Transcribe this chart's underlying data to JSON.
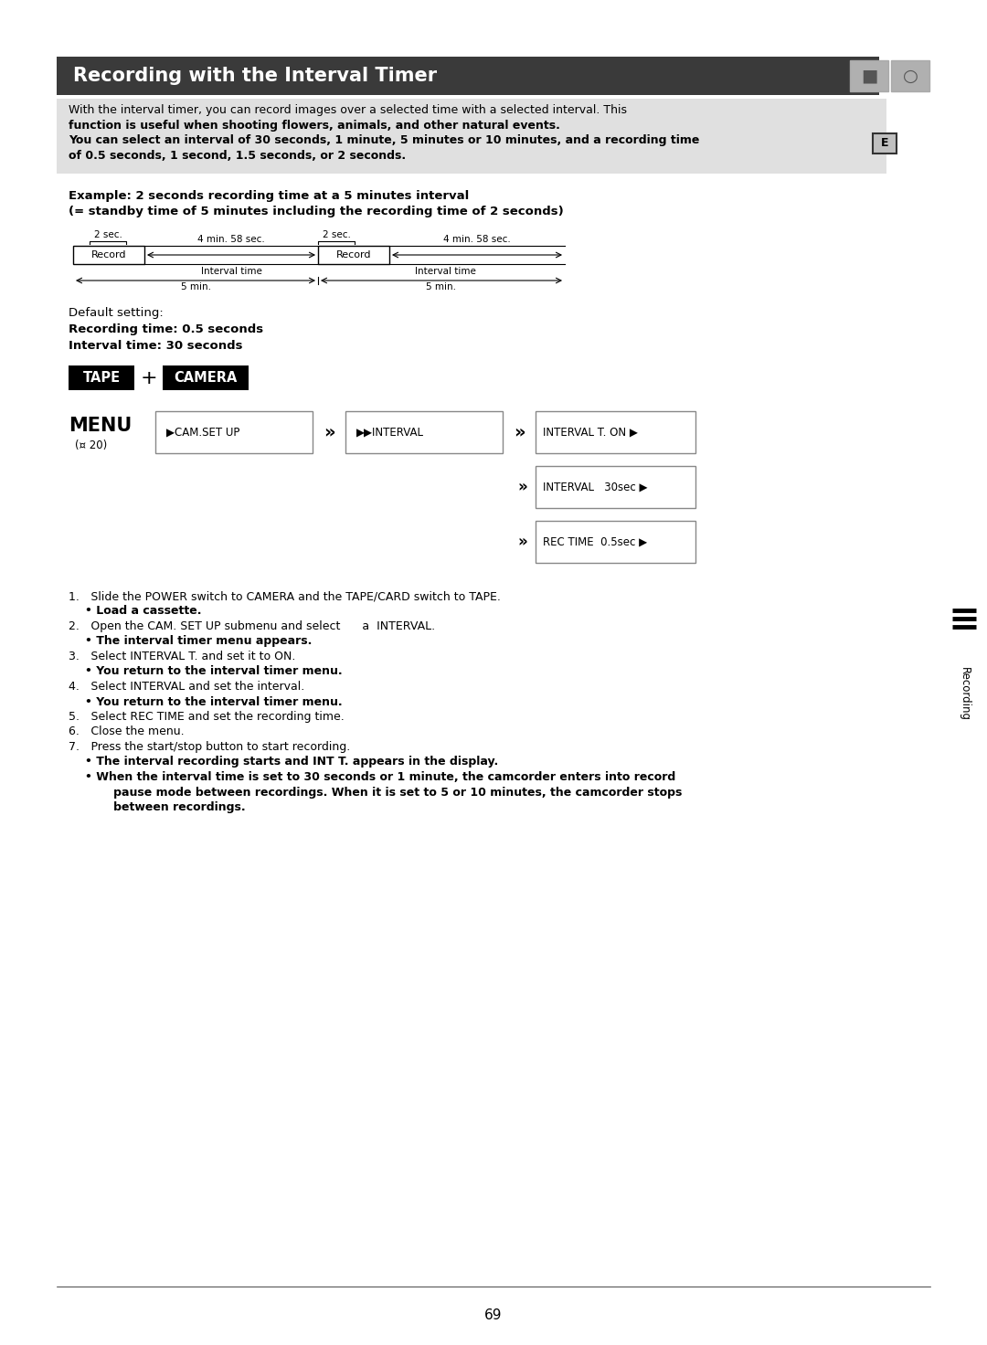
{
  "title": "Recording with the Interval Timer",
  "title_bg": "#3a3a3a",
  "title_color": "#ffffff",
  "body_bg": "#ffffff",
  "page_number": "69",
  "e_box_text": "E",
  "intro_lines": [
    {
      "text": "With the interval timer, you can record images over a selected time with a selected interval. This",
      "bold": false
    },
    {
      "text": "function is useful when shooting flowers, animals, and other natural events.",
      "bold": true
    },
    {
      "text": "You can select an interval of 30 seconds, 1 minute, 5 minutes or 10 minutes, and a recording time",
      "bold": true
    },
    {
      "text": "of 0.5 seconds, 1 second, 1.5 seconds, or 2 seconds.",
      "bold": true
    }
  ],
  "example_line1": "Example: 2 seconds recording time at a 5 minutes interval",
  "example_line2": "(= standby time of 5 minutes including the recording time of 2 seconds)",
  "default_label": "Default setting:",
  "default_bold1": "Recording time: 0.5 seconds",
  "default_bold2": "Interval time: 30 seconds",
  "tape_label": "TAPE",
  "plus_label": "+",
  "camera_label": "CAMERA",
  "menu_label": "MENU",
  "menu_ref": "(¤ 20)",
  "box1_text": "▶CAM.SET UP",
  "box2_text": "▶▶INTERVAL",
  "box3a_text": "INTERVAL T. ON ▶",
  "box3b_text": "INTERVAL   30sec ▶",
  "box3c_text": "REC TIME  0.5sec ▶",
  "sidebar_text": "Recording",
  "steps": [
    {
      "text": "1. Slide the POWER switch to CAMERA and the TAPE/CARD switch to TAPE.",
      "bold": false,
      "indent": 0
    },
    {
      "text": "• Load a cassette.",
      "bold": true,
      "indent": 1
    },
    {
      "text": "2. Open the CAM. SET UP submenu and select      a  INTERVAL.",
      "bold": false,
      "indent": 0
    },
    {
      "text": "• The interval timer menu appears.",
      "bold": true,
      "indent": 1
    },
    {
      "text": "3. Select INTERVAL T. and set it to ON.",
      "bold": false,
      "indent": 0
    },
    {
      "text": "• You return to the interval timer menu.",
      "bold": true,
      "indent": 1
    },
    {
      "text": "4. Select INTERVAL and set the interval.",
      "bold": false,
      "indent": 0
    },
    {
      "text": "• You return to the interval timer menu.",
      "bold": true,
      "indent": 1
    },
    {
      "text": "5. Select REC TIME and set the recording time.",
      "bold": false,
      "indent": 0
    },
    {
      "text": "6. Close the menu.",
      "bold": false,
      "indent": 0
    },
    {
      "text": "7. Press the start/stop button to start recording.",
      "bold": false,
      "indent": 0
    },
    {
      "text": "• The interval recording starts and INT T. appears in the display.",
      "bold": true,
      "indent": 1
    },
    {
      "text": "• When the interval time is set to 30 seconds or 1 minute, the camcorder enters into record",
      "bold": true,
      "indent": 1
    },
    {
      "text": "   pause mode between recordings. When it is set to 5 or 10 minutes, the camcorder stops",
      "bold": true,
      "indent": 2
    },
    {
      "text": "   between recordings.",
      "bold": true,
      "indent": 2
    }
  ]
}
